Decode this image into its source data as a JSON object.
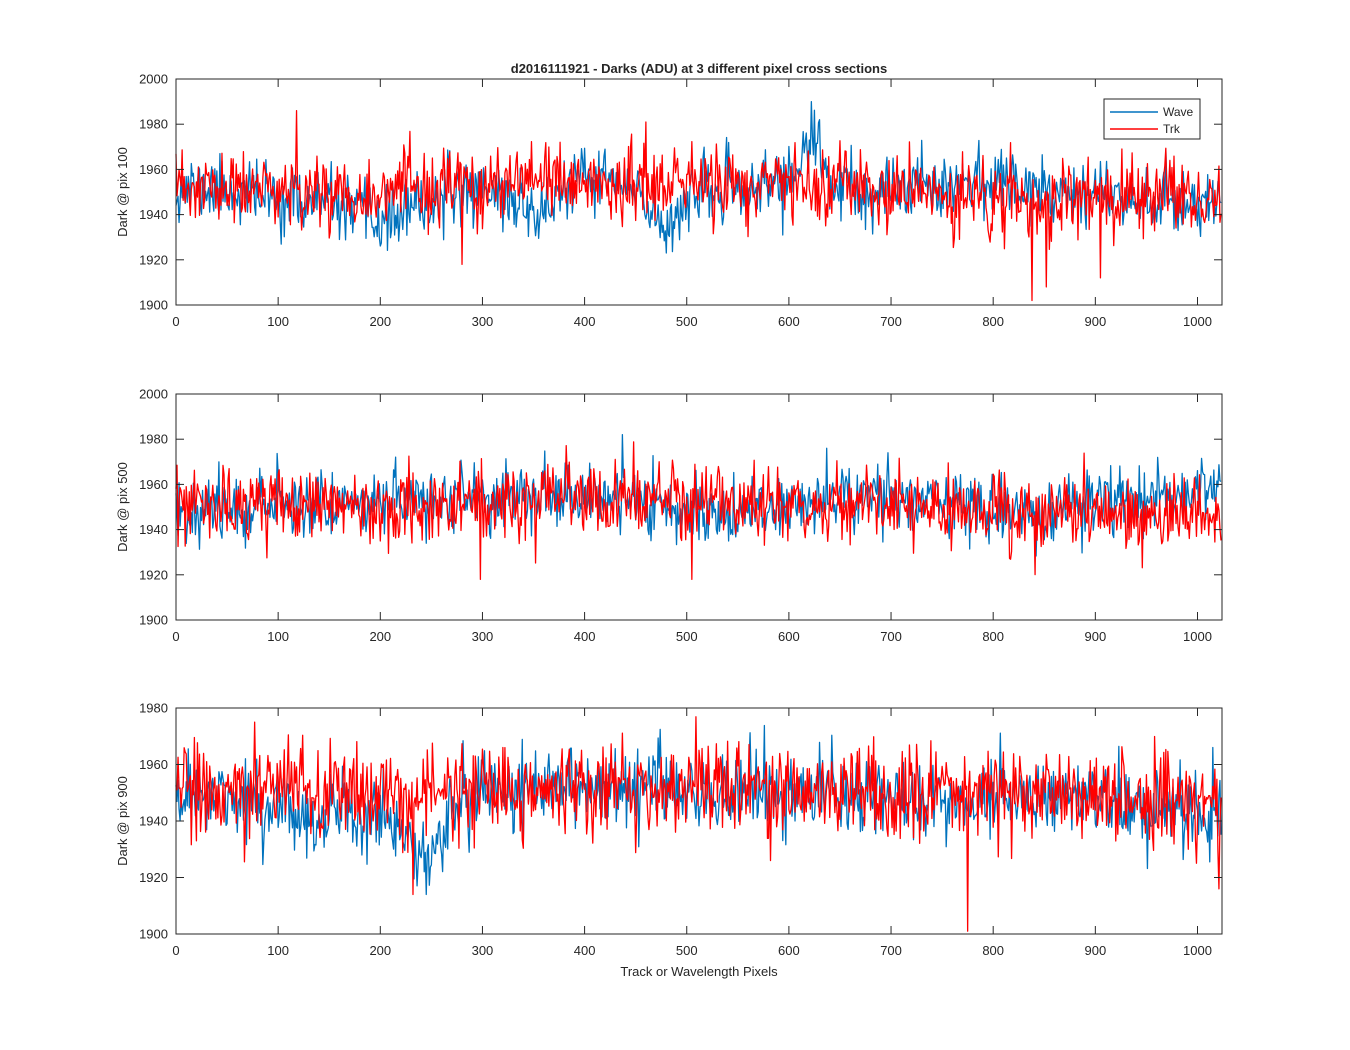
{
  "chart_data": [
    {
      "type": "line",
      "title": "d2016111921 - Darks (ADU) at 3 different pixel cross sections",
      "xlabel": "",
      "ylabel": "Dark @ pix 100",
      "xlim": [
        0,
        1024
      ],
      "ylim": [
        1900,
        2000
      ],
      "xticks": [
        0,
        100,
        200,
        300,
        400,
        500,
        600,
        700,
        800,
        900,
        1000
      ],
      "yticks": [
        1900,
        1920,
        1940,
        1960,
        1980,
        2000
      ],
      "legend": {
        "position": "top-right",
        "entries": [
          "Wave",
          "Trk"
        ]
      },
      "series": [
        {
          "name": "Wave",
          "color": "#0072BD",
          "noise_std": 7,
          "baseline": [
            [
              0,
              1952
            ],
            [
              50,
              1951
            ],
            [
              100,
              1947
            ],
            [
              150,
              1945
            ],
            [
              200,
              1937
            ],
            [
              230,
              1942
            ],
            [
              270,
              1949
            ],
            [
              300,
              1953
            ],
            [
              330,
              1946
            ],
            [
              360,
              1940
            ],
            [
              380,
              1952
            ],
            [
              420,
              1957
            ],
            [
              460,
              1945
            ],
            [
              480,
              1934
            ],
            [
              500,
              1948
            ],
            [
              560,
              1951
            ],
            [
              600,
              1956
            ],
            [
              615,
              1965
            ],
            [
              625,
              1972
            ],
            [
              640,
              1955
            ],
            [
              680,
              1945
            ],
            [
              720,
              1955
            ],
            [
              800,
              1955
            ],
            [
              900,
              1950
            ],
            [
              1000,
              1945
            ],
            [
              1024,
              1946
            ]
          ],
          "spikes": [
            [
              622,
              1990
            ],
            [
              630,
              1982
            ]
          ],
          "clamp": [
            1901,
            1999
          ],
          "seed": 11
        },
        {
          "name": "Trk",
          "color": "#FF0000",
          "noise_std": 8,
          "baseline": [
            [
              0,
              1951
            ],
            [
              200,
              1950
            ],
            [
              400,
              1954
            ],
            [
              600,
              1953
            ],
            [
              700,
              1950
            ],
            [
              800,
              1946
            ],
            [
              850,
              1944
            ],
            [
              900,
              1948
            ],
            [
              1024,
              1947
            ]
          ],
          "spikes": [
            [
              118,
              1986
            ],
            [
              280,
              1918
            ],
            [
              376,
              1972
            ],
            [
              838,
              1902
            ],
            [
              852,
              1908
            ],
            [
              905,
              1912
            ]
          ],
          "clamp": [
            1901,
            1999
          ],
          "seed": 23
        }
      ]
    },
    {
      "type": "line",
      "title": "",
      "xlabel": "",
      "ylabel": "Dark @ pix 500",
      "xlim": [
        0,
        1024
      ],
      "ylim": [
        1900,
        2000
      ],
      "xticks": [
        0,
        100,
        200,
        300,
        400,
        500,
        600,
        700,
        800,
        900,
        1000
      ],
      "yticks": [
        1900,
        1920,
        1940,
        1960,
        1980,
        2000
      ],
      "series": [
        {
          "name": "Wave",
          "color": "#0072BD",
          "noise_std": 7,
          "baseline": [
            [
              0,
              1948
            ],
            [
              100,
              1952
            ],
            [
              200,
              1952
            ],
            [
              300,
              1955
            ],
            [
              400,
              1954
            ],
            [
              500,
              1950
            ],
            [
              550,
              1945
            ],
            [
              600,
              1952
            ],
            [
              700,
              1955
            ],
            [
              800,
              1950
            ],
            [
              850,
              1945
            ],
            [
              900,
              1952
            ],
            [
              980,
              1955
            ],
            [
              1024,
              1962
            ]
          ],
          "spikes": [
            [
              437,
              1982
            ],
            [
              637,
              1976
            ],
            [
              697,
              1974
            ]
          ],
          "clamp": [
            1901,
            1999
          ],
          "seed": 37
        },
        {
          "name": "Trk",
          "color": "#FF0000",
          "noise_std": 8,
          "baseline": [
            [
              0,
              1950
            ],
            [
              200,
              1951
            ],
            [
              400,
              1953
            ],
            [
              600,
              1952
            ],
            [
              800,
              1947
            ],
            [
              900,
              1948
            ],
            [
              1024,
              1948
            ]
          ],
          "spikes": [
            [
              298,
              1918
            ],
            [
              505,
              1918
            ],
            [
              870,
              1963
            ]
          ],
          "clamp": [
            1901,
            1999
          ],
          "seed": 53
        }
      ]
    },
    {
      "type": "line",
      "title": "",
      "xlabel": "Track or Wavelength Pixels",
      "ylabel": "Dark @ pix 900",
      "xlim": [
        0,
        1024
      ],
      "ylim": [
        1900,
        1980
      ],
      "xticks": [
        0,
        100,
        200,
        300,
        400,
        500,
        600,
        700,
        800,
        900,
        1000
      ],
      "yticks": [
        1900,
        1920,
        1940,
        1960,
        1980
      ],
      "series": [
        {
          "name": "Wave",
          "color": "#0072BD",
          "noise_std": 7,
          "baseline": [
            [
              0,
              1950
            ],
            [
              100,
              1945
            ],
            [
              140,
              1940
            ],
            [
              200,
              1945
            ],
            [
              230,
              1930
            ],
            [
              250,
              1926
            ],
            [
              270,
              1945
            ],
            [
              300,
              1953
            ],
            [
              400,
              1953
            ],
            [
              500,
              1950
            ],
            [
              600,
              1950
            ],
            [
              700,
              1948
            ],
            [
              800,
              1948
            ],
            [
              900,
              1950
            ],
            [
              1000,
              1940
            ],
            [
              1024,
              1942
            ]
          ],
          "spikes": [
            [
              245,
              1914
            ],
            [
              1015,
              1966
            ]
          ],
          "clamp": [
            1901,
            1979
          ],
          "seed": 71
        },
        {
          "name": "Trk",
          "color": "#FF0000",
          "noise_std": 8,
          "baseline": [
            [
              0,
              1951
            ],
            [
              200,
              1950
            ],
            [
              400,
              1952
            ],
            [
              600,
              1951
            ],
            [
              800,
              1949
            ],
            [
              1024,
              1948
            ]
          ],
          "spikes": [
            [
              77,
              1975
            ],
            [
              232,
              1914
            ],
            [
              775,
              1901
            ],
            [
              1021,
              1916
            ]
          ],
          "clamp": [
            1901,
            1979
          ],
          "seed": 89
        }
      ]
    }
  ]
}
